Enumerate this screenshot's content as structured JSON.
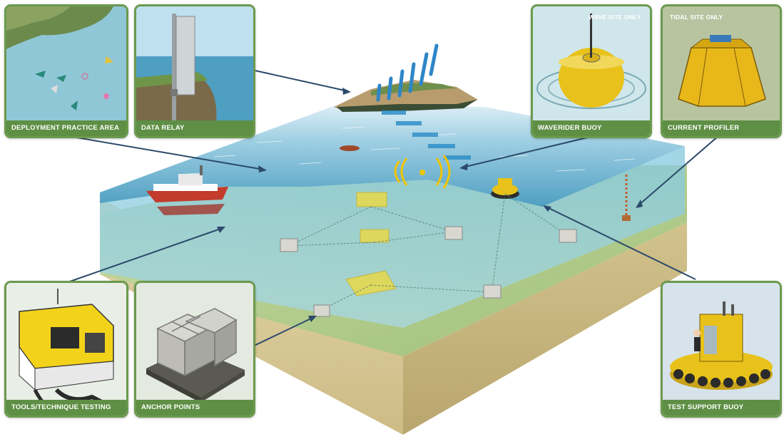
{
  "panels": {
    "deployment": {
      "label": "DEPLOYMENT PRACTICE AREA"
    },
    "data_relay": {
      "label": "DATA RELAY"
    },
    "waverider": {
      "label": "WAVERIDER BUOY",
      "tag": "WAVE SITE ONLY"
    },
    "current_profiler": {
      "label": "CURRENT PROFILER",
      "tag": "TIDAL SITE ONLY"
    },
    "tools": {
      "label": "TOOLS/TECHNIQUE TESTING"
    },
    "anchor": {
      "label": "ANCHOR POINTS"
    },
    "test_support": {
      "label": "TEST SUPPORT BUOY"
    }
  },
  "colors": {
    "panel_border": "#6b9a4e",
    "label_bar": "#5e8f45",
    "sea": "#6fb6d2",
    "seabed": "#b9cf93",
    "block_side": "#d8c99a",
    "arrow": "#2b4a6a",
    "buoy_yellow": "#e8c21a"
  }
}
